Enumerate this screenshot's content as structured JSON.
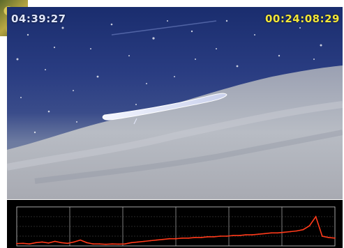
{
  "video": {
    "timestamp_left": "04:39:27",
    "timestamp_right": "00:24:08:29"
  },
  "colors": {
    "timestamp_left": "#dfe6ff",
    "timestamp_right": "#f2e63a",
    "signal": "#ff3a1a",
    "grid": "#cfcfcf",
    "chart_bg": "#000000"
  },
  "chart_data": {
    "type": "line",
    "grid": true,
    "ylim": [
      0,
      6
    ],
    "x": [
      0,
      2,
      4,
      6,
      8,
      10,
      12,
      14,
      16,
      18,
      20,
      22,
      24,
      26,
      28,
      30,
      32,
      34,
      36,
      38,
      40,
      42,
      44,
      46,
      48,
      50,
      52,
      54,
      56,
      58,
      60,
      62,
      64,
      66,
      68,
      70,
      72,
      74,
      76,
      78,
      80,
      82,
      84,
      86,
      88,
      90,
      92,
      94,
      96,
      98,
      100
    ],
    "series": [
      {
        "values": [
          0.35,
          0.4,
          0.3,
          0.5,
          0.6,
          0.45,
          0.7,
          0.5,
          0.4,
          0.6,
          0.9,
          0.5,
          0.3,
          0.3,
          0.25,
          0.3,
          0.28,
          0.3,
          0.5,
          0.6,
          0.7,
          0.8,
          0.9,
          1.0,
          1.1,
          1.1,
          1.2,
          1.2,
          1.3,
          1.3,
          1.4,
          1.4,
          1.5,
          1.5,
          1.6,
          1.6,
          1.7,
          1.7,
          1.8,
          1.9,
          2.0,
          2.0,
          2.1,
          2.2,
          2.3,
          2.5,
          3.1,
          4.5,
          1.5,
          1.3,
          1.2
        ]
      }
    ]
  }
}
